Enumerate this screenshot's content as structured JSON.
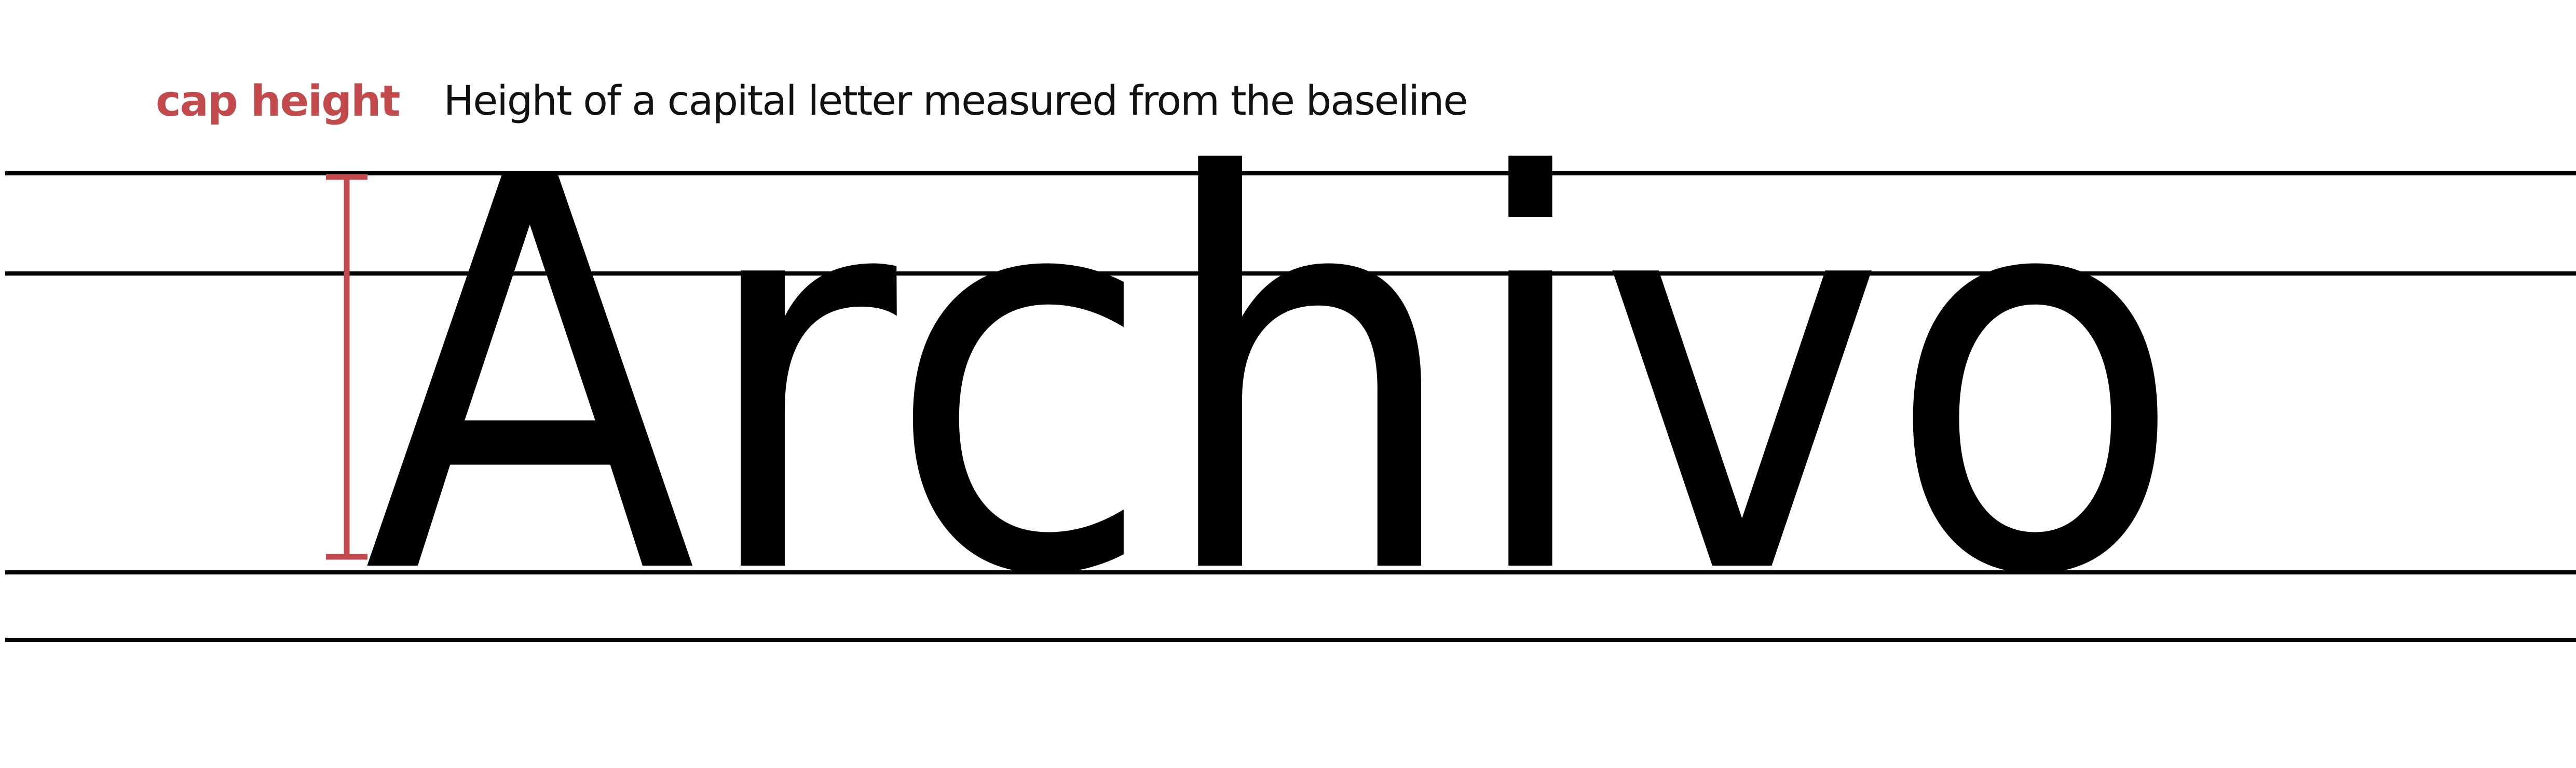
{
  "term": {
    "label": "cap height",
    "color": "#c24a4d"
  },
  "definition": "Height of a capital letter measured from the baseline",
  "specimen": {
    "word": "Archivo",
    "color": "#000000"
  },
  "guide_lines": [
    "cap-height-line",
    "x-height-line",
    "baseline",
    "descender-line"
  ],
  "indicator": {
    "icon": "i-beam-measure-icon",
    "color": "#c24a4d"
  }
}
